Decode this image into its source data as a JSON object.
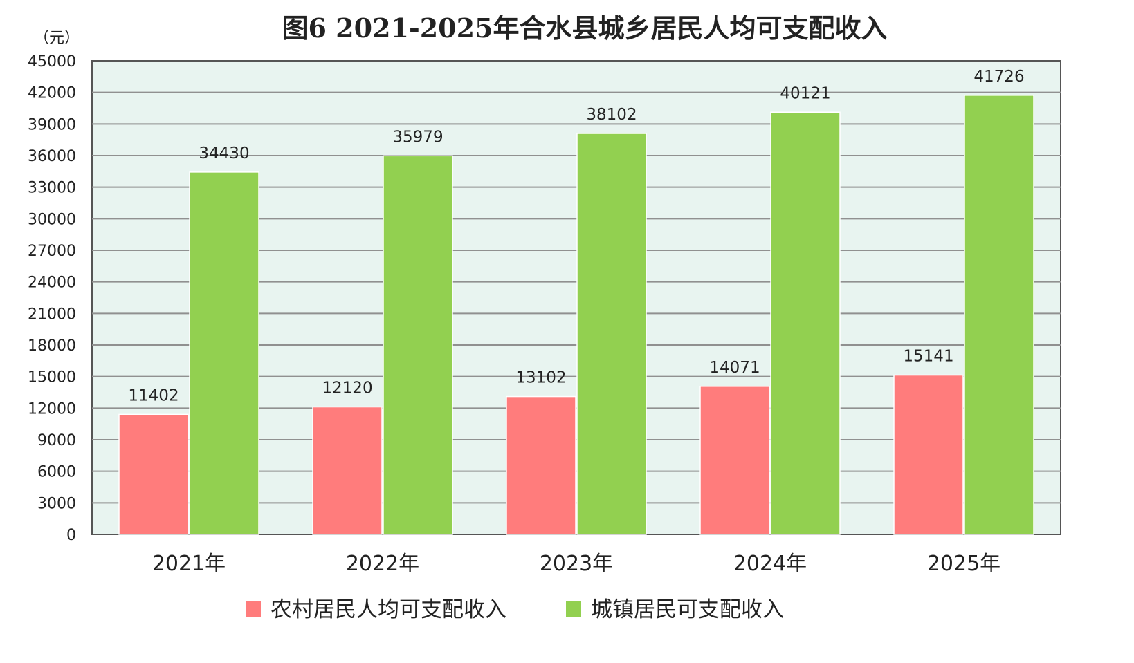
{
  "chart_data": {
    "type": "bar",
    "title": "图6 2021-2025年合水县城乡居民人均可支配收入",
    "unit_label": "（元）",
    "xlabel": "",
    "ylabel": "",
    "categories": [
      "2021年",
      "2022年",
      "2023年",
      "2024年",
      "2025年"
    ],
    "series": [
      {
        "name": "农村居民人均可支配收入",
        "color": "#ff7c7c",
        "values": [
          11402,
          12120,
          13102,
          14071,
          15141
        ]
      },
      {
        "name": "城镇居民可支配收入",
        "color": "#92d050",
        "values": [
          34430,
          35979,
          38102,
          40121,
          41726
        ]
      }
    ],
    "ylim": [
      0,
      45000
    ],
    "yticks": [
      "0",
      "3000",
      "6000",
      "9000",
      "12000",
      "15000",
      "18000",
      "21000",
      "24000",
      "27000",
      "30000",
      "33000",
      "36000",
      "39000",
      "42000",
      "45000"
    ],
    "grid": true,
    "plot_background": "#e8f4f0",
    "legend_position": "bottom"
  }
}
